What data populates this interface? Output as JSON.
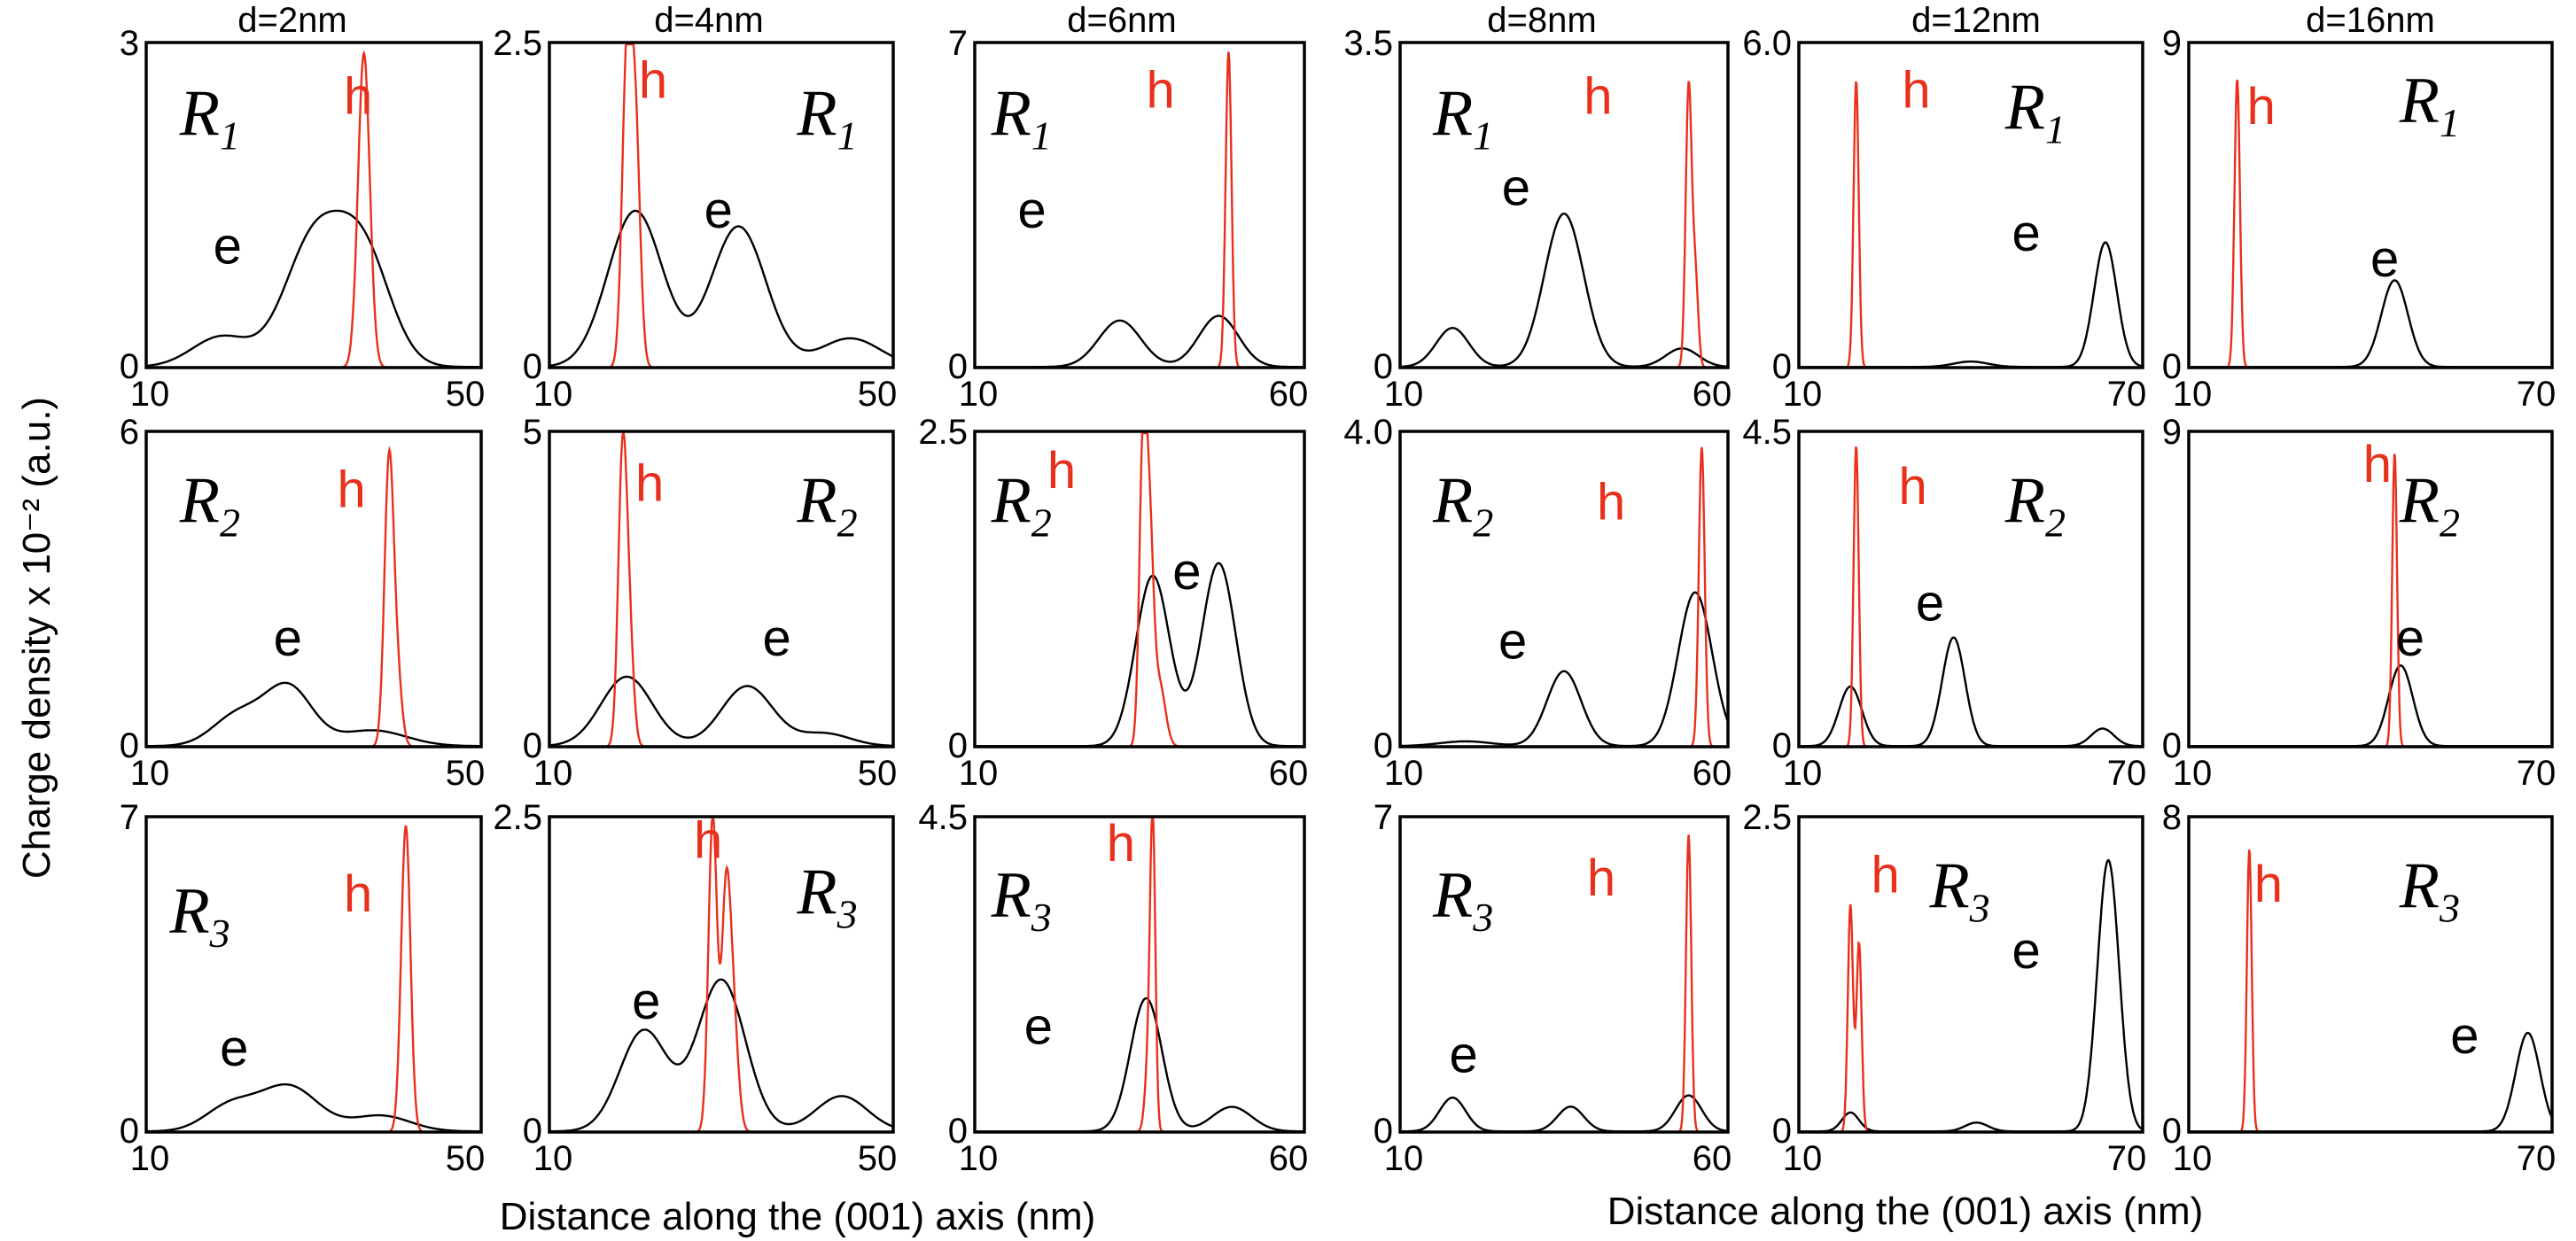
{
  "y_axis_title": "Charge density x 10⁻² (a.u.)",
  "x_axis_title_left": "Distance along the (001) axis (nm)",
  "x_axis_title_right": "Distance along the (001) axis (nm)",
  "colors": {
    "electron": "#000000",
    "hole": "#e8301c",
    "frame": "#000000"
  },
  "chart_data": [
    {
      "type": "line",
      "column": "d=2nm",
      "row": "R1",
      "region": "R",
      "region_sub": "1",
      "xlim": [
        10,
        50
      ],
      "ylim": [
        0,
        3
      ],
      "x_ticks": [
        "10",
        "50"
      ],
      "y_ticks": [
        "0",
        "3"
      ],
      "e_label": "e",
      "h_label": "h",
      "series": [
        {
          "name": "e",
          "peaks": [
            {
              "x": 30,
              "h": 1.15,
              "w": 3.5
            },
            {
              "x": 36,
              "h": 1.0,
              "w": 3.2
            },
            {
              "x": 19,
              "h": 0.28,
              "w": 3.5
            }
          ]
        },
        {
          "name": "h",
          "peaks": [
            {
              "x": 36,
              "h": 2.9,
              "w": 0.7
            }
          ]
        }
      ]
    },
    {
      "type": "line",
      "column": "d=4nm",
      "row": "R1",
      "region": "R",
      "region_sub": "1",
      "xlim": [
        10,
        50
      ],
      "ylim": [
        0,
        2.5
      ],
      "x_ticks": [
        "10",
        "50"
      ],
      "y_ticks": [
        "0",
        "2.5"
      ],
      "e_label": "e",
      "h_label": "h",
      "series": [
        {
          "name": "e",
          "peaks": [
            {
              "x": 20,
              "h": 1.2,
              "w": 3.2
            },
            {
              "x": 32,
              "h": 1.08,
              "w": 3.2
            },
            {
              "x": 45,
              "h": 0.22,
              "w": 3.5
            }
          ]
        },
        {
          "name": "h",
          "peaks": [
            {
              "x": 19,
              "h": 2.3,
              "w": 0.55
            },
            {
              "x": 20,
              "h": 1.8,
              "w": 0.55
            }
          ]
        }
      ]
    },
    {
      "type": "line",
      "column": "d=6nm",
      "row": "R1",
      "region": "R",
      "region_sub": "1",
      "xlim": [
        10,
        60
      ],
      "ylim": [
        0,
        7
      ],
      "x_ticks": [
        "10",
        "60"
      ],
      "y_ticks": [
        "0",
        "7"
      ],
      "e_label": "e",
      "h_label": "h",
      "series": [
        {
          "name": "e",
          "peaks": [
            {
              "x": 32,
              "h": 1.0,
              "w": 3.2
            },
            {
              "x": 47,
              "h": 1.1,
              "w": 3.0
            }
          ]
        },
        {
          "name": "h",
          "peaks": [
            {
              "x": 48.5,
              "h": 6.8,
              "w": 0.45
            }
          ]
        }
      ]
    },
    {
      "type": "line",
      "column": "d=8nm",
      "row": "R1",
      "region": "R",
      "region_sub": "1",
      "xlim": [
        10,
        60
      ],
      "ylim": [
        0,
        3.5
      ],
      "x_ticks": [
        "10",
        "60"
      ],
      "y_ticks": [
        "0",
        "3.5"
      ],
      "e_label": "e",
      "h_label": "h",
      "series": [
        {
          "name": "e",
          "peaks": [
            {
              "x": 18,
              "h": 0.42,
              "w": 2.5
            },
            {
              "x": 35,
              "h": 1.65,
              "w": 3.0
            },
            {
              "x": 53,
              "h": 0.2,
              "w": 2.5
            }
          ]
        },
        {
          "name": "h",
          "peaks": [
            {
              "x": 54,
              "h": 3.0,
              "w": 0.45
            },
            {
              "x": 55,
              "h": 1.0,
              "w": 0.45
            }
          ]
        }
      ]
    },
    {
      "type": "line",
      "column": "d=12nm",
      "row": "R1",
      "region": "R",
      "region_sub": "1",
      "xlim": [
        10,
        70
      ],
      "ylim": [
        0,
        6.0
      ],
      "x_ticks": [
        "10",
        "70"
      ],
      "y_ticks": [
        "0",
        "6.0"
      ],
      "e_label": "e",
      "h_label": "h",
      "series": [
        {
          "name": "e",
          "peaks": [
            {
              "x": 63.5,
              "h": 2.3,
              "w": 2.0
            },
            {
              "x": 40,
              "h": 0.1,
              "w": 3.0
            }
          ]
        },
        {
          "name": "h",
          "peaks": [
            {
              "x": 20,
              "h": 5.3,
              "w": 0.45
            }
          ]
        }
      ]
    },
    {
      "type": "line",
      "column": "d=16nm",
      "row": "R1",
      "region": "R",
      "region_sub": "1",
      "xlim": [
        10,
        70
      ],
      "ylim": [
        0,
        9
      ],
      "x_ticks": [
        "10",
        "70"
      ],
      "y_ticks": [
        "0",
        "9"
      ],
      "e_label": "e",
      "h_label": "h",
      "series": [
        {
          "name": "e",
          "peaks": [
            {
              "x": 44,
              "h": 2.4,
              "w": 2.2
            }
          ]
        },
        {
          "name": "h",
          "peaks": [
            {
              "x": 18,
              "h": 8.0,
              "w": 0.45
            }
          ]
        }
      ]
    },
    {
      "type": "line",
      "column": "d=2nm",
      "row": "R2",
      "region": "R",
      "region_sub": "2",
      "xlim": [
        10,
        50
      ],
      "ylim": [
        0,
        6
      ],
      "x_ticks": [
        "10",
        "50"
      ],
      "y_ticks": [
        "0",
        "6"
      ],
      "e_label": "e",
      "h_label": "h",
      "series": [
        {
          "name": "e",
          "peaks": [
            {
              "x": 27,
              "h": 1.1,
              "w": 2.8
            },
            {
              "x": 21,
              "h": 0.6,
              "w": 3.0
            },
            {
              "x": 37,
              "h": 0.3,
              "w": 4.0
            }
          ]
        },
        {
          "name": "h",
          "peaks": [
            {
              "x": 39,
              "h": 5.4,
              "w": 0.55
            },
            {
              "x": 40,
              "h": 1.2,
              "w": 0.55
            }
          ]
        }
      ]
    },
    {
      "type": "line",
      "column": "d=4nm",
      "row": "R2",
      "region": "R",
      "region_sub": "2",
      "xlim": [
        10,
        50
      ],
      "ylim": [
        0,
        5
      ],
      "x_ticks": [
        "10",
        "50"
      ],
      "y_ticks": [
        "0",
        "5"
      ],
      "e_label": "e",
      "h_label": "h",
      "series": [
        {
          "name": "e",
          "peaks": [
            {
              "x": 19,
              "h": 1.1,
              "w": 3.0
            },
            {
              "x": 33,
              "h": 0.95,
              "w": 3.0
            },
            {
              "x": 42,
              "h": 0.2,
              "w": 3.0
            }
          ]
        },
        {
          "name": "h",
          "peaks": [
            {
              "x": 18.5,
              "h": 4.5,
              "w": 0.5
            },
            {
              "x": 19.3,
              "h": 1.6,
              "w": 0.5
            }
          ]
        }
      ]
    },
    {
      "type": "line",
      "column": "d=6nm",
      "row": "R2",
      "region": "R",
      "region_sub": "2",
      "xlim": [
        10,
        60
      ],
      "ylim": [
        0,
        2.5
      ],
      "x_ticks": [
        "10",
        "60"
      ],
      "y_ticks": [
        "0",
        "2.5"
      ],
      "e_label": "e",
      "h_label": "h",
      "series": [
        {
          "name": "e",
          "peaks": [
            {
              "x": 37,
              "h": 1.35,
              "w": 2.6
            },
            {
              "x": 47,
              "h": 1.45,
              "w": 2.6
            }
          ]
        },
        {
          "name": "h",
          "peaks": [
            {
              "x": 35.5,
              "h": 2.25,
              "w": 0.55
            },
            {
              "x": 36.5,
              "h": 1.6,
              "w": 0.6
            },
            {
              "x": 38,
              "h": 0.5,
              "w": 0.9
            }
          ]
        }
      ]
    },
    {
      "type": "line",
      "column": "d=8nm",
      "row": "R2",
      "region": "R",
      "region_sub": "2",
      "xlim": [
        10,
        60
      ],
      "ylim": [
        0,
        4.0
      ],
      "x_ticks": [
        "10",
        "60"
      ],
      "y_ticks": [
        "0",
        "4.0"
      ],
      "e_label": "e",
      "h_label": "h",
      "series": [
        {
          "name": "e",
          "peaks": [
            {
              "x": 35,
              "h": 0.95,
              "w": 2.6
            },
            {
              "x": 55,
              "h": 1.95,
              "w": 2.6
            },
            {
              "x": 20,
              "h": 0.06,
              "w": 4.0
            }
          ]
        },
        {
          "name": "h",
          "peaks": [
            {
              "x": 56,
              "h": 3.8,
              "w": 0.45
            }
          ]
        }
      ]
    },
    {
      "type": "line",
      "column": "d=12nm",
      "row": "R2",
      "region": "R",
      "region_sub": "2",
      "xlim": [
        10,
        70
      ],
      "ylim": [
        0,
        4.5
      ],
      "x_ticks": [
        "10",
        "70"
      ],
      "y_ticks": [
        "0",
        "4.5"
      ],
      "e_label": "e",
      "h_label": "h",
      "series": [
        {
          "name": "e",
          "peaks": [
            {
              "x": 19,
              "h": 0.85,
              "w": 2.0
            },
            {
              "x": 37,
              "h": 1.55,
              "w": 2.0
            },
            {
              "x": 63,
              "h": 0.25,
              "w": 2.0
            }
          ]
        },
        {
          "name": "h",
          "peaks": [
            {
              "x": 20,
              "h": 4.3,
              "w": 0.45
            }
          ]
        }
      ]
    },
    {
      "type": "line",
      "column": "d=16nm",
      "row": "R2",
      "region": "R",
      "region_sub": "2",
      "xlim": [
        10,
        70
      ],
      "ylim": [
        0,
        9
      ],
      "x_ticks": [
        "10",
        "70"
      ],
      "y_ticks": [
        "0",
        "9"
      ],
      "e_label": "e",
      "h_label": "h",
      "series": [
        {
          "name": "e",
          "peaks": [
            {
              "x": 45,
              "h": 2.3,
              "w": 2.0
            }
          ]
        },
        {
          "name": "h",
          "peaks": [
            {
              "x": 44,
              "h": 8.4,
              "w": 0.4
            }
          ]
        }
      ]
    },
    {
      "type": "line",
      "column": "d=2nm",
      "row": "R3",
      "region": "R",
      "region_sub": "3",
      "xlim": [
        10,
        50
      ],
      "ylim": [
        0,
        7
      ],
      "x_ticks": [
        "10",
        "50"
      ],
      "y_ticks": [
        "0",
        "7"
      ],
      "e_label": "e",
      "h_label": "h",
      "series": [
        {
          "name": "e",
          "peaks": [
            {
              "x": 27,
              "h": 1.0,
              "w": 3.5
            },
            {
              "x": 20,
              "h": 0.55,
              "w": 3.0
            },
            {
              "x": 38,
              "h": 0.35,
              "w": 3.5
            }
          ]
        },
        {
          "name": "h",
          "peaks": [
            {
              "x": 41,
              "h": 6.8,
              "w": 0.55
            }
          ]
        }
      ]
    },
    {
      "type": "line",
      "column": "d=4nm",
      "row": "R3",
      "region": "R",
      "region_sub": "3",
      "xlim": [
        10,
        50
      ],
      "ylim": [
        0,
        2.5
      ],
      "x_ticks": [
        "10",
        "50"
      ],
      "y_ticks": [
        "0",
        "2.5"
      ],
      "e_label": "e",
      "h_label": "h",
      "series": [
        {
          "name": "e",
          "peaks": [
            {
              "x": 21,
              "h": 0.8,
              "w": 2.8
            },
            {
              "x": 30,
              "h": 1.2,
              "w": 2.8
            },
            {
              "x": 44,
              "h": 0.28,
              "w": 3.0
            }
          ]
        },
        {
          "name": "h",
          "peaks": [
            {
              "x": 29,
              "h": 2.5,
              "w": 0.5
            },
            {
              "x": 30.5,
              "h": 1.6,
              "w": 0.5
            },
            {
              "x": 31.3,
              "h": 1.0,
              "w": 0.6
            }
          ]
        }
      ]
    },
    {
      "type": "line",
      "column": "d=6nm",
      "row": "R3",
      "region": "R",
      "region_sub": "3",
      "xlim": [
        10,
        60
      ],
      "ylim": [
        0,
        4.5
      ],
      "x_ticks": [
        "10",
        "60"
      ],
      "y_ticks": [
        "0",
        "4.5"
      ],
      "e_label": "e",
      "h_label": "h",
      "series": [
        {
          "name": "e",
          "peaks": [
            {
              "x": 36,
              "h": 1.9,
              "w": 2.4
            },
            {
              "x": 49,
              "h": 0.35,
              "w": 3.0
            }
          ]
        },
        {
          "name": "h",
          "peaks": [
            {
              "x": 37,
              "h": 4.3,
              "w": 0.4
            },
            {
              "x": 36.3,
              "h": 0.9,
              "w": 0.5
            }
          ]
        }
      ]
    },
    {
      "type": "line",
      "column": "d=8nm",
      "row": "R3",
      "region": "R",
      "region_sub": "3",
      "xlim": [
        10,
        60
      ],
      "ylim": [
        0,
        7
      ],
      "x_ticks": [
        "10",
        "60"
      ],
      "y_ticks": [
        "0",
        "7"
      ],
      "e_label": "e",
      "h_label": "h",
      "series": [
        {
          "name": "e",
          "peaks": [
            {
              "x": 18,
              "h": 0.75,
              "w": 2.0
            },
            {
              "x": 36,
              "h": 0.55,
              "w": 2.0
            },
            {
              "x": 54,
              "h": 0.8,
              "w": 2.0
            }
          ]
        },
        {
          "name": "h",
          "peaks": [
            {
              "x": 54,
              "h": 6.6,
              "w": 0.4
            }
          ]
        }
      ]
    },
    {
      "type": "line",
      "column": "d=12nm",
      "row": "R3",
      "region": "R",
      "region_sub": "3",
      "xlim": [
        10,
        70
      ],
      "ylim": [
        0,
        2.5
      ],
      "x_ticks": [
        "10",
        "70"
      ],
      "y_ticks": [
        "0",
        "2.5"
      ],
      "e_label": "e",
      "h_label": "h",
      "series": [
        {
          "name": "e",
          "peaks": [
            {
              "x": 64,
              "h": 2.15,
              "w": 1.9
            },
            {
              "x": 19,
              "h": 0.15,
              "w": 1.5
            },
            {
              "x": 41,
              "h": 0.07,
              "w": 2.0
            }
          ]
        },
        {
          "name": "h",
          "peaks": [
            {
              "x": 19,
              "h": 1.8,
              "w": 0.45
            },
            {
              "x": 20.5,
              "h": 1.5,
              "w": 0.45
            }
          ]
        }
      ]
    },
    {
      "type": "line",
      "column": "d=16nm",
      "row": "R3",
      "region": "R",
      "region_sub": "3",
      "xlim": [
        10,
        70
      ],
      "ylim": [
        0,
        8
      ],
      "x_ticks": [
        "10",
        "70"
      ],
      "y_ticks": [
        "0",
        "8"
      ],
      "e_label": "e",
      "h_label": "h",
      "series": [
        {
          "name": "e",
          "peaks": [
            {
              "x": 66,
              "h": 2.5,
              "w": 2.0
            }
          ]
        },
        {
          "name": "h",
          "peaks": [
            {
              "x": 20,
              "h": 7.2,
              "w": 0.4
            }
          ]
        }
      ]
    }
  ]
}
